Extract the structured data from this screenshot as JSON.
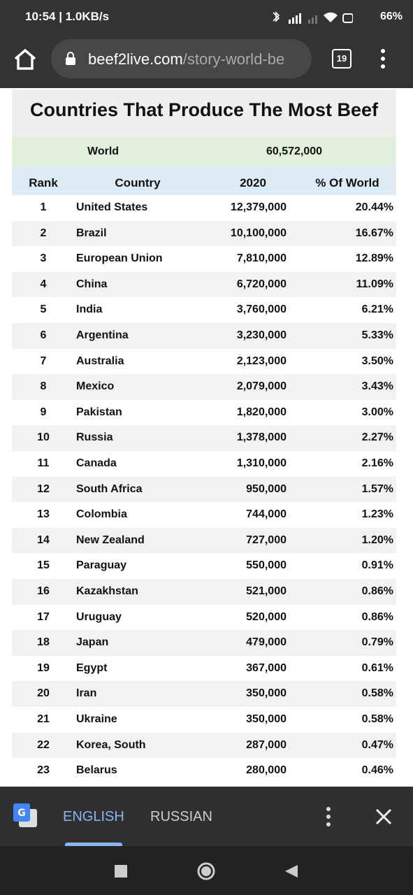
{
  "status_bar": {
    "time": "10:54 | 1.0KB/s",
    "battery": "66%"
  },
  "browser": {
    "url": {
      "domain": "beef2live.com",
      "path": "/story-world-be"
    },
    "tab_count": "19"
  },
  "table": {
    "title": "Countries That Produce The Most Beef",
    "world": {
      "label": "World",
      "value": "60,572,000"
    },
    "headers": [
      "Rank",
      "Country",
      "2020",
      "% Of World"
    ],
    "rows": [
      [
        "1",
        "United States",
        "12,379,000",
        "20.44%"
      ],
      [
        "2",
        "Brazil",
        "10,100,000",
        "16.67%"
      ],
      [
        "3",
        "European Union",
        "7,810,000",
        "12.89%"
      ],
      [
        "4",
        "China",
        "6,720,000",
        "11.09%"
      ],
      [
        "5",
        "India",
        "3,760,000",
        "6.21%"
      ],
      [
        "6",
        "Argentina",
        "3,230,000",
        "5.33%"
      ],
      [
        "7",
        "Australia",
        "2,123,000",
        "3.50%"
      ],
      [
        "8",
        "Mexico",
        "2,079,000",
        "3.43%"
      ],
      [
        "9",
        "Pakistan",
        "1,820,000",
        "3.00%"
      ],
      [
        "10",
        "Russia",
        "1,378,000",
        "2.27%"
      ],
      [
        "11",
        "Canada",
        "1,310,000",
        "2.16%"
      ],
      [
        "12",
        "South Africa",
        "950,000",
        "1.57%"
      ],
      [
        "13",
        "Colombia",
        "744,000",
        "1.23%"
      ],
      [
        "14",
        "New Zealand",
        "727,000",
        "1.20%"
      ],
      [
        "15",
        "Paraguay",
        "550,000",
        "0.91%"
      ],
      [
        "16",
        "Kazakhstan",
        "521,000",
        "0.86%"
      ],
      [
        "17",
        "Uruguay",
        "520,000",
        "0.86%"
      ],
      [
        "18",
        "Japan",
        "479,000",
        "0.79%"
      ],
      [
        "19",
        "Egypt",
        "367,000",
        "0.61%"
      ],
      [
        "20",
        "Iran",
        "350,000",
        "0.58%"
      ],
      [
        "21",
        "Ukraine",
        "350,000",
        "0.58%"
      ],
      [
        "22",
        "Korea, South",
        "287,000",
        "0.47%"
      ],
      [
        "23",
        "Belarus",
        "280,000",
        "0.46%"
      ]
    ]
  },
  "translate_bar": {
    "source": "ENGLISH",
    "target": "RUSSIAN"
  }
}
